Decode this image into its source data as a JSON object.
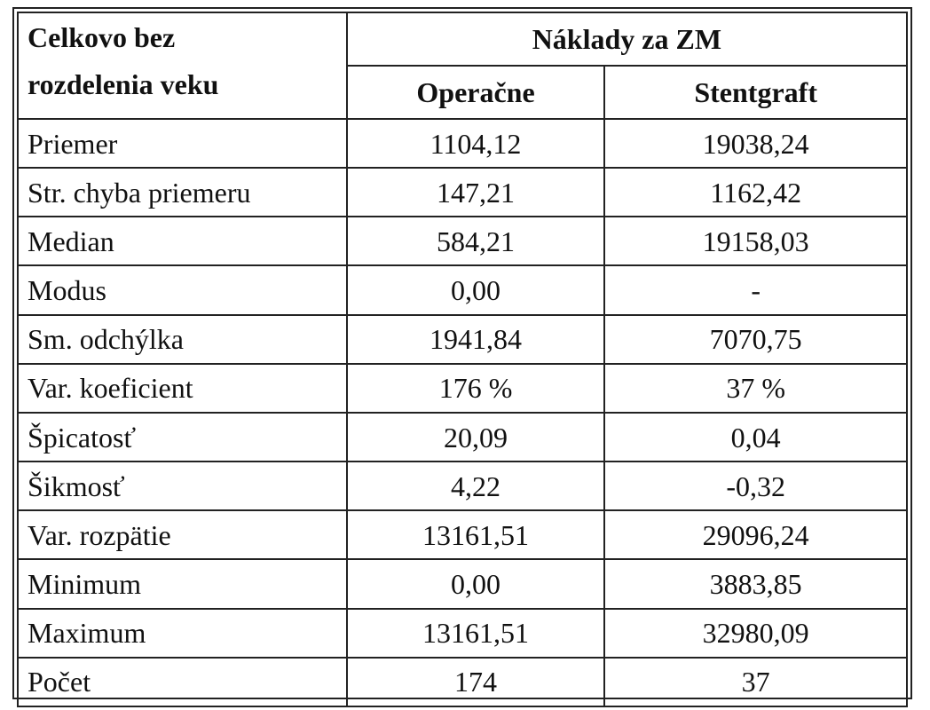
{
  "table": {
    "header": {
      "corner": [
        "Celkovo bez",
        "rozdelenia veku"
      ],
      "group": "Náklady za ZM",
      "columns": [
        "Operačne",
        "Stentgraft"
      ]
    },
    "rows": [
      [
        "Priemer",
        "1104,12",
        "19038,24"
      ],
      [
        "Str. chyba priemeru",
        "147,21",
        "1162,42"
      ],
      [
        "Median",
        "584,21",
        "19158,03"
      ],
      [
        "Modus",
        "0,00",
        "-"
      ],
      [
        "Sm. odchýlka",
        "1941,84",
        "7070,75"
      ],
      [
        "Var. koeficient",
        "176 %",
        "37 %"
      ],
      [
        "Špicatosť",
        "20,09",
        "0,04"
      ],
      [
        "Šikmosť",
        "4,22",
        "-0,32"
      ],
      [
        "Var. rozpätie",
        "13161,51",
        "29096,24"
      ],
      [
        "Minimum",
        "0,00",
        "3883,85"
      ],
      [
        "Maximum",
        "13161,51",
        "32980,09"
      ],
      [
        "Počet",
        "174",
        "37"
      ]
    ]
  }
}
